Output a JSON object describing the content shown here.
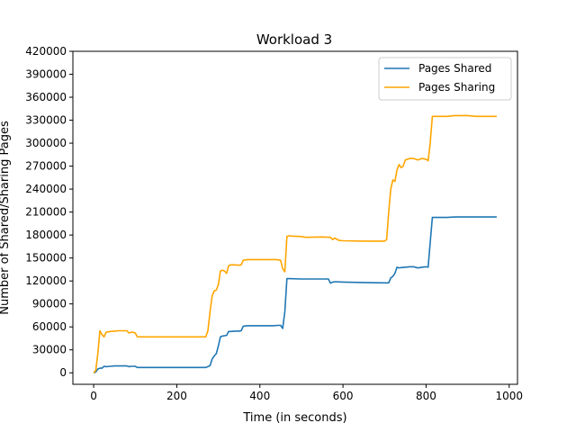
{
  "chart_data": {
    "type": "line",
    "title": "Workload 3",
    "xlabel": "Time (in seconds)",
    "ylabel": "Number of Shared/Sharing Pages",
    "xlim": [
      -50,
      1020
    ],
    "ylim": [
      -15000,
      420000
    ],
    "xticks": [
      0,
      200,
      400,
      600,
      800,
      1000
    ],
    "yticks": [
      0,
      30000,
      60000,
      90000,
      120000,
      150000,
      180000,
      210000,
      240000,
      270000,
      300000,
      330000,
      360000,
      390000,
      420000
    ],
    "legend_position": "top-right",
    "series": [
      {
        "name": "Pages Shared",
        "color": "#1f77b4",
        "points": [
          [
            0,
            0
          ],
          [
            5,
            1000
          ],
          [
            10,
            5000
          ],
          [
            15,
            6000
          ],
          [
            20,
            6000
          ],
          [
            25,
            8500
          ],
          [
            30,
            8000
          ],
          [
            40,
            8500
          ],
          [
            50,
            9000
          ],
          [
            60,
            9000
          ],
          [
            70,
            9000
          ],
          [
            80,
            9000
          ],
          [
            85,
            8000
          ],
          [
            90,
            8500
          ],
          [
            95,
            8500
          ],
          [
            100,
            8500
          ],
          [
            105,
            7000
          ],
          [
            110,
            7000
          ],
          [
            150,
            7000
          ],
          [
            200,
            7000
          ],
          [
            250,
            7000
          ],
          [
            270,
            7000
          ],
          [
            275,
            8000
          ],
          [
            280,
            9500
          ],
          [
            285,
            18000
          ],
          [
            290,
            22000
          ],
          [
            295,
            25000
          ],
          [
            300,
            35000
          ],
          [
            305,
            47000
          ],
          [
            310,
            48000
          ],
          [
            315,
            48500
          ],
          [
            320,
            49000
          ],
          [
            325,
            54000
          ],
          [
            330,
            54000
          ],
          [
            340,
            54500
          ],
          [
            350,
            54500
          ],
          [
            355,
            55000
          ],
          [
            360,
            61000
          ],
          [
            370,
            61500
          ],
          [
            400,
            61500
          ],
          [
            430,
            61500
          ],
          [
            445,
            62000
          ],
          [
            450,
            62000
          ],
          [
            455,
            58000
          ],
          [
            460,
            80000
          ],
          [
            465,
            123000
          ],
          [
            470,
            123000
          ],
          [
            500,
            122500
          ],
          [
            550,
            122500
          ],
          [
            565,
            122500
          ],
          [
            570,
            117000
          ],
          [
            575,
            118500
          ],
          [
            580,
            119000
          ],
          [
            600,
            118500
          ],
          [
            650,
            118000
          ],
          [
            700,
            117500
          ],
          [
            710,
            117500
          ],
          [
            715,
            124000
          ],
          [
            720,
            126000
          ],
          [
            725,
            130000
          ],
          [
            730,
            138000
          ],
          [
            735,
            137000
          ],
          [
            740,
            137500
          ],
          [
            750,
            138000
          ],
          [
            760,
            138500
          ],
          [
            770,
            138500
          ],
          [
            780,
            137000
          ],
          [
            790,
            138000
          ],
          [
            800,
            138500
          ],
          [
            805,
            138000
          ],
          [
            810,
            170000
          ],
          [
            815,
            203000
          ],
          [
            830,
            203000
          ],
          [
            850,
            203000
          ],
          [
            870,
            203500
          ],
          [
            900,
            203500
          ],
          [
            950,
            203500
          ],
          [
            970,
            203500
          ]
        ]
      },
      {
        "name": "Pages Sharing",
        "color": "#ffa500",
        "points": [
          [
            0,
            0
          ],
          [
            5,
            3000
          ],
          [
            10,
            25000
          ],
          [
            15,
            55000
          ],
          [
            20,
            50000
          ],
          [
            25,
            47000
          ],
          [
            30,
            53000
          ],
          [
            35,
            53500
          ],
          [
            40,
            54000
          ],
          [
            50,
            54500
          ],
          [
            60,
            55000
          ],
          [
            70,
            55000
          ],
          [
            80,
            55000
          ],
          [
            85,
            52000
          ],
          [
            90,
            53000
          ],
          [
            95,
            53000
          ],
          [
            100,
            52000
          ],
          [
            105,
            47000
          ],
          [
            110,
            47000
          ],
          [
            150,
            47000
          ],
          [
            200,
            47000
          ],
          [
            250,
            47000
          ],
          [
            270,
            47000
          ],
          [
            275,
            55000
          ],
          [
            280,
            80000
          ],
          [
            285,
            100000
          ],
          [
            290,
            107000
          ],
          [
            295,
            108000
          ],
          [
            300,
            115000
          ],
          [
            305,
            133000
          ],
          [
            310,
            134000
          ],
          [
            315,
            133000
          ],
          [
            320,
            130000
          ],
          [
            325,
            140000
          ],
          [
            330,
            141000
          ],
          [
            340,
            141000
          ],
          [
            350,
            140500
          ],
          [
            355,
            141000
          ],
          [
            360,
            147000
          ],
          [
            370,
            148000
          ],
          [
            400,
            148000
          ],
          [
            440,
            148000
          ],
          [
            450,
            147000
          ],
          [
            455,
            136000
          ],
          [
            460,
            132000
          ],
          [
            465,
            178000
          ],
          [
            470,
            179000
          ],
          [
            480,
            178500
          ],
          [
            500,
            178000
          ],
          [
            510,
            177000
          ],
          [
            550,
            177500
          ],
          [
            570,
            177000
          ],
          [
            575,
            174000
          ],
          [
            580,
            176000
          ],
          [
            590,
            173000
          ],
          [
            600,
            172500
          ],
          [
            650,
            172000
          ],
          [
            700,
            172000
          ],
          [
            705,
            174000
          ],
          [
            710,
            210000
          ],
          [
            715,
            240000
          ],
          [
            720,
            252000
          ],
          [
            725,
            250000
          ],
          [
            730,
            265000
          ],
          [
            735,
            272000
          ],
          [
            740,
            268000
          ],
          [
            745,
            270000
          ],
          [
            750,
            278000
          ],
          [
            760,
            280000
          ],
          [
            770,
            280000
          ],
          [
            780,
            278000
          ],
          [
            790,
            280000
          ],
          [
            800,
            279000
          ],
          [
            805,
            277000
          ],
          [
            810,
            300000
          ],
          [
            815,
            335000
          ],
          [
            830,
            335000
          ],
          [
            850,
            335000
          ],
          [
            870,
            336000
          ],
          [
            900,
            336000
          ],
          [
            920,
            335000
          ],
          [
            950,
            335000
          ],
          [
            970,
            335000
          ]
        ]
      }
    ]
  }
}
